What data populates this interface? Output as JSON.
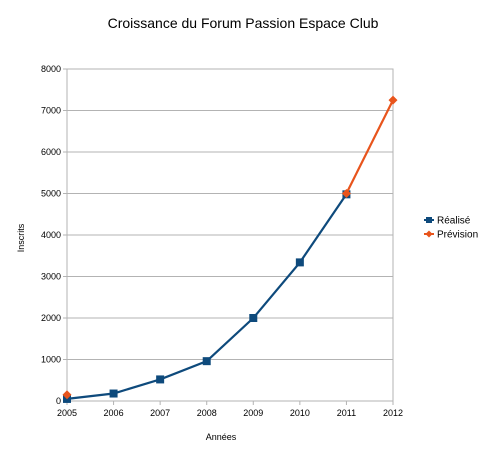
{
  "chart_data": {
    "type": "line",
    "title": "Croissance du Forum Passion Espace Club",
    "xlabel": "Années",
    "ylabel": "Inscrits",
    "categories": [
      "2005",
      "2006",
      "2007",
      "2008",
      "2009",
      "2010",
      "2011",
      "2012"
    ],
    "ylim": [
      0,
      8000
    ],
    "yticks": [
      0,
      1000,
      2000,
      3000,
      4000,
      5000,
      6000,
      7000,
      8000
    ],
    "grid": true,
    "legend_position": "right",
    "series": [
      {
        "name": "Réalisé",
        "color": "#0e4a7c",
        "marker": "square",
        "values": [
          50,
          180,
          520,
          960,
          2000,
          3340,
          4980,
          null
        ]
      },
      {
        "name": "Prévision",
        "color": "#e8541c",
        "marker": "diamond",
        "values": [
          150,
          null,
          null,
          null,
          null,
          null,
          5000,
          7250
        ]
      }
    ]
  }
}
